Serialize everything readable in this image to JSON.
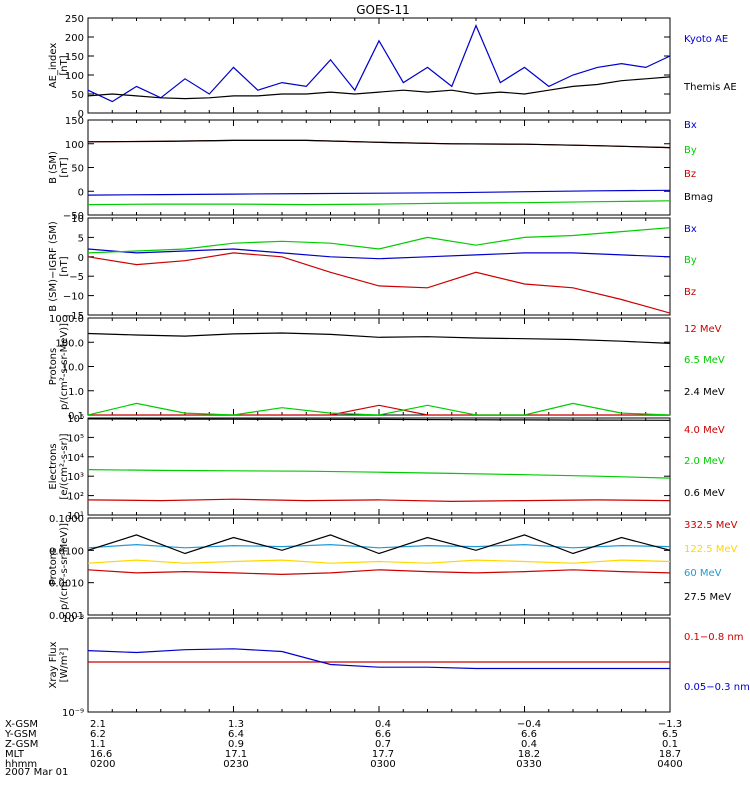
{
  "title": "GOES-11",
  "date": "2007 Mar 01",
  "colors": {
    "blue": "#0000cc",
    "red": "#cc0000",
    "green": "#00cc00",
    "black": "#000000",
    "yellow": "#ffd700",
    "cyan": "#1e9bd7"
  },
  "chart_data": [
    {
      "type": "line",
      "ylabel": [
        "AE_index",
        "[nT]"
      ],
      "yscale": "linear",
      "ylim": [
        0,
        250
      ],
      "ticks": [
        0,
        50,
        100,
        150,
        200,
        250
      ],
      "tick_labels": [
        "0",
        "50",
        "100",
        "150",
        "200",
        "250"
      ],
      "x": [
        0,
        5,
        10,
        15,
        20,
        25,
        30,
        35,
        40,
        45,
        50,
        55,
        60,
        65,
        70,
        75,
        80,
        85,
        90,
        95,
        100,
        105,
        110,
        115,
        120
      ],
      "series": [
        {
          "name": "Kyoto AE",
          "color": "blue",
          "values": [
            60,
            30,
            70,
            40,
            90,
            50,
            120,
            60,
            80,
            70,
            140,
            60,
            190,
            80,
            120,
            70,
            230,
            80,
            120,
            70,
            100,
            120,
            130,
            120,
            150
          ]
        },
        {
          "name": "Themis AE",
          "color": "black",
          "values": [
            45,
            50,
            45,
            40,
            38,
            40,
            45,
            45,
            50,
            50,
            55,
            50,
            55,
            60,
            55,
            60,
            50,
            55,
            50,
            60,
            70,
            75,
            85,
            90,
            95
          ]
        }
      ]
    },
    {
      "type": "line",
      "ylabel": [
        "B (SM)",
        "[nT]"
      ],
      "yscale": "linear",
      "ylim": [
        -50,
        150
      ],
      "ticks": [
        -50,
        0,
        50,
        100,
        150
      ],
      "tick_labels": [
        "−50",
        "0",
        "50",
        "100",
        "150"
      ],
      "x": [
        0,
        15,
        30,
        45,
        60,
        75,
        90,
        105,
        120
      ],
      "series": [
        {
          "name": "Bx",
          "color": "blue",
          "values": [
            -8,
            -7,
            -6,
            -5,
            -4,
            -3,
            -1,
            1,
            2
          ]
        },
        {
          "name": "By",
          "color": "green",
          "values": [
            -28,
            -27,
            -27,
            -28,
            -27,
            -25,
            -24,
            -22,
            -20
          ]
        },
        {
          "name": "Bz",
          "color": "red",
          "values": [
            104,
            105,
            107,
            107,
            103,
            100,
            99,
            96,
            92
          ]
        },
        {
          "name": "Bmag",
          "color": "black",
          "values": [
            104,
            105,
            107,
            107,
            103,
            100,
            99,
            96,
            92
          ]
        }
      ]
    },
    {
      "type": "line",
      "ylabel": [
        "B (SM)−IGRF (SM)",
        "[nT]"
      ],
      "yscale": "linear",
      "ylim": [
        -15,
        10
      ],
      "ticks": [
        -15,
        -10,
        -5,
        0,
        5,
        10
      ],
      "tick_labels": [
        "−15",
        "−10",
        "−5",
        "0",
        "5",
        "10"
      ],
      "x": [
        0,
        10,
        20,
        30,
        40,
        50,
        60,
        70,
        80,
        90,
        100,
        110,
        120
      ],
      "series": [
        {
          "name": "Bx",
          "color": "blue",
          "values": [
            2,
            1,
            1.5,
            2,
            1,
            0,
            -0.5,
            0,
            0.5,
            1,
            1,
            0.5,
            0
          ]
        },
        {
          "name": "By",
          "color": "green",
          "values": [
            1,
            1.5,
            2,
            3.5,
            4,
            3.5,
            2,
            5,
            3,
            5,
            5.5,
            6.5,
            7.5
          ]
        },
        {
          "name": "Bz",
          "color": "red",
          "values": [
            0,
            -2,
            -1,
            1,
            0,
            -4,
            -7.5,
            -8,
            -4,
            -7,
            -8,
            -11,
            -14.5
          ]
        }
      ]
    },
    {
      "type": "line",
      "ylabel": [
        "Protons",
        "p/(cm²-s-sr-MeV)]"
      ],
      "yscale": "log",
      "ylim": [
        0.1,
        1000
      ],
      "ticks": [
        0.1,
        1,
        10,
        100,
        1000
      ],
      "tick_labels": [
        "0.1",
        "1.0",
        "10.0",
        "100.0",
        "1000.0"
      ],
      "x": [
        0,
        10,
        20,
        30,
        40,
        50,
        60,
        70,
        80,
        90,
        100,
        110,
        120
      ],
      "series": [
        {
          "name": "12 MeV",
          "color": "red",
          "values": [
            0.1,
            0.1,
            0.1,
            0.1,
            0.1,
            0.1,
            0.25,
            0.1,
            0.1,
            0.1,
            0.1,
            0.1,
            0.1
          ]
        },
        {
          "name": "6.5 MeV",
          "color": "green",
          "values": [
            0.1,
            0.3,
            0.12,
            0.1,
            0.2,
            0.12,
            0.1,
            0.25,
            0.1,
            0.1,
            0.3,
            0.12,
            0.1
          ]
        },
        {
          "name": "2.4 MeV",
          "color": "black",
          "values": [
            230,
            200,
            180,
            220,
            240,
            210,
            160,
            170,
            150,
            140,
            130,
            110,
            90
          ]
        }
      ]
    },
    {
      "type": "line",
      "ylabel": [
        "Electrons",
        "[e/(cm²-s-sr)]"
      ],
      "yscale": "log",
      "ylim": [
        10,
        1000000
      ],
      "ticks": [
        10,
        100,
        1000,
        10000,
        100000,
        1000000
      ],
      "tick_labels": [
        "10¹",
        "10²",
        "10³",
        "10⁴",
        "10⁵",
        "10⁶"
      ],
      "x": [
        0,
        15,
        30,
        45,
        60,
        75,
        90,
        105,
        120
      ],
      "series": [
        {
          "name": "4.0 MeV",
          "color": "red",
          "values": [
            60,
            55,
            65,
            55,
            60,
            50,
            55,
            60,
            55
          ]
        },
        {
          "name": "2.0 MeV",
          "color": "green",
          "values": [
            2200,
            2000,
            1900,
            1800,
            1600,
            1400,
            1200,
            1000,
            800
          ]
        },
        {
          "name": "0.6 MeV",
          "color": "black",
          "values": [
            900000,
            880000,
            870000,
            860000,
            850000,
            820000,
            800000,
            780000,
            760000
          ]
        }
      ]
    },
    {
      "type": "line",
      "ylabel": [
        "Protons",
        "p/(cm²-s-sr-MeV)]"
      ],
      "yscale": "log",
      "ylim": [
        0.0001,
        0.1
      ],
      "ticks": [
        0.0001,
        0.001,
        0.01,
        0.1
      ],
      "tick_labels": [
        "0.0001",
        "0.0010",
        "0.0100",
        "0.1000"
      ],
      "x": [
        0,
        10,
        20,
        30,
        40,
        50,
        60,
        70,
        80,
        90,
        100,
        110,
        120
      ],
      "series": [
        {
          "name": "332.5 MeV",
          "color": "red",
          "values": [
            0.0025,
            0.002,
            0.0022,
            0.002,
            0.0018,
            0.002,
            0.0025,
            0.0022,
            0.002,
            0.0022,
            0.0025,
            0.0022,
            0.002
          ]
        },
        {
          "name": "122.5 MeV",
          "color": "yellow",
          "values": [
            0.004,
            0.005,
            0.004,
            0.0045,
            0.005,
            0.004,
            0.0045,
            0.004,
            0.005,
            0.0045,
            0.004,
            0.005,
            0.0045
          ]
        },
        {
          "name": "60 MeV",
          "color": "cyan",
          "values": [
            0.012,
            0.015,
            0.012,
            0.014,
            0.013,
            0.015,
            0.012,
            0.014,
            0.013,
            0.015,
            0.012,
            0.014,
            0.013
          ]
        },
        {
          "name": "27.5 MeV",
          "color": "black",
          "values": [
            0.01,
            0.03,
            0.008,
            0.025,
            0.01,
            0.03,
            0.008,
            0.025,
            0.01,
            0.03,
            0.008,
            0.025,
            0.01
          ]
        }
      ]
    },
    {
      "type": "line",
      "ylabel": [
        "Xray Flux",
        "[W/m²]"
      ],
      "yscale": "log",
      "ylim": [
        1e-09,
        1e-08
      ],
      "ticks": [
        1e-09,
        1e-08
      ],
      "tick_labels": [
        "10⁻⁹",
        "10⁻⁸"
      ],
      "x": [
        0,
        10,
        20,
        30,
        40,
        50,
        60,
        70,
        80,
        90,
        100,
        110,
        120
      ],
      "series": [
        {
          "name": "0.1−0.8 nm",
          "color": "red",
          "values": [
            3.4e-09,
            3.4e-09,
            3.4e-09,
            3.4e-09,
            3.4e-09,
            3.4e-09,
            3.4e-09,
            3.4e-09,
            3.4e-09,
            3.4e-09,
            3.4e-09,
            3.4e-09,
            3.4e-09
          ]
        },
        {
          "name": "0.05−0.3 nm",
          "color": "blue",
          "values": [
            4.5e-09,
            4.3e-09,
            4.6e-09,
            4.7e-09,
            4.4e-09,
            3.2e-09,
            3e-09,
            3e-09,
            2.9e-09,
            2.9e-09,
            2.9e-09,
            2.9e-09,
            2.9e-09
          ]
        }
      ]
    }
  ],
  "footer": {
    "row_labels": [
      "X-GSM",
      "Y-GSM",
      "Z-GSM",
      "MLT",
      "hhmm"
    ],
    "columns": [
      {
        "values": [
          "2.1",
          "6.2",
          "1.1",
          "16.6",
          "0200"
        ]
      },
      {
        "values": [
          "1.3",
          "6.4",
          "0.9",
          "17.1",
          "0230"
        ]
      },
      {
        "values": [
          "0.4",
          "6.6",
          "0.7",
          "17.7",
          "0300"
        ]
      },
      {
        "values": [
          "−0.4",
          "6.6",
          "0.4",
          "18.2",
          "0330"
        ]
      },
      {
        "values": [
          "−1.3",
          "6.5",
          "0.1",
          "18.7",
          "0400"
        ]
      }
    ]
  }
}
